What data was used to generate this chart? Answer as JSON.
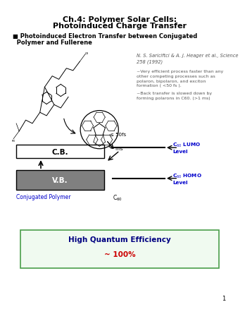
{
  "title_line1": "Ch.4: Polymer Solar Cells:",
  "title_line2": "Photoinduced Charge Transfer",
  "bullet_line1": "■ Photoinduced Electron Transfer between Conjugated",
  "bullet_line2": "  Polymer and Fullerene",
  "ref_text": "N. S. Sariciftci & A. J. Heager et al., Science\n258 (1992)",
  "desc_text1": "~Very efficient process faster than any\nother competing processes such as\npolaron, bipolaron, and exciton\nformation ( <50 fs ).",
  "desc_text2": "~Back transfer is slowed down by\nforming polarons in C60. (>1 ms)",
  "cb_label": "C.B.",
  "vb_label": "V.B.",
  "conj_label": "Conjugated Polymer",
  "c60_label": "C$_{60}$",
  "lumo_label1": "C$_{60}$ LUMO",
  "lumo_label2": "Level",
  "homo_label1": "C$_{60}$ HOMO",
  "homo_label2": "Level",
  "arrow_label1": "≤ 50fs",
  "arrow_label2": "~ ms",
  "hqe_line1": "High Quantum Efficiency",
  "hqe_line2": "~ 100%",
  "bg_color": "#ffffff",
  "title_color": "#000000",
  "bullet_color": "#000000",
  "cb_box_color": "#ffffff",
  "vb_box_color": "#808080",
  "vb_text_color": "#ffffff",
  "conj_label_color": "#0000cc",
  "c60_label_color": "#000000",
  "lumo_color": "#0000cc",
  "homo_color": "#0000cc",
  "hqe_box_edge": "#4a9e4a",
  "hqe_box_color": "#f0faf0",
  "hqe_title_color": "#000080",
  "hqe_value_color": "#cc0000",
  "page_num": "1"
}
